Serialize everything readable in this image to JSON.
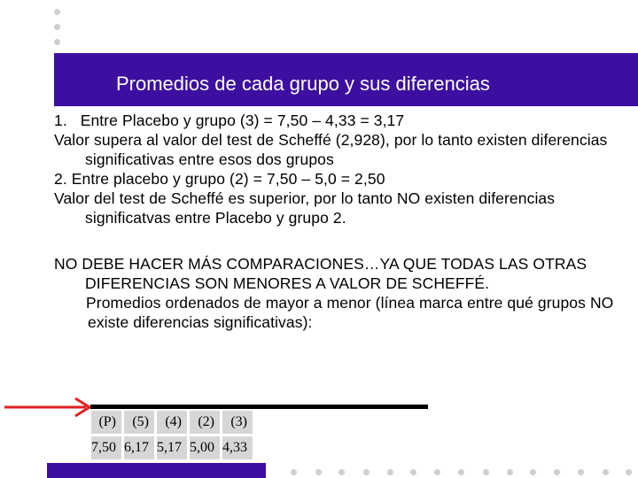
{
  "slide": {
    "title": "Promedios de cada grupo y sus diferencias",
    "paragraphs": {
      "p1_num": "1.",
      "p1_text": "Entre Placebo y grupo (3) = 7,50 – 4,33 = 3,17",
      "p2": "Valor supera al valor del test de Scheffé (2,928), por lo tanto existen diferencias significativas entre esos dos grupos",
      "p3": "2. Entre placebo y grupo (2) = 7,50 – 5,0 = 2,50",
      "p4": "Valor del test de Scheffé es superior, por lo tanto NO existen diferencias significatvas entre Placebo y grupo 2.",
      "p5": "NO DEBE HACER MÁS COMPARACIONES…YA QUE TODAS LAS OTRAS DIFERENCIAS SON MENORES A VALOR DE SCHEFFÉ.",
      "p6": "Promedios ordenados de mayor a menor (línea marca entre qué grupos NO existe diferencias significativas):"
    },
    "table": {
      "headers": [
        "(P)",
        "(5)",
        "(4)",
        "(2)",
        "(3)"
      ],
      "values": [
        "7,50",
        "6,17",
        "5,17",
        "5,00",
        "4,33"
      ]
    },
    "colors": {
      "banner": "#3d0fa0",
      "arrow": "#e02020",
      "cell": "#d6d6d6",
      "dots": "#cfcfcf"
    }
  }
}
